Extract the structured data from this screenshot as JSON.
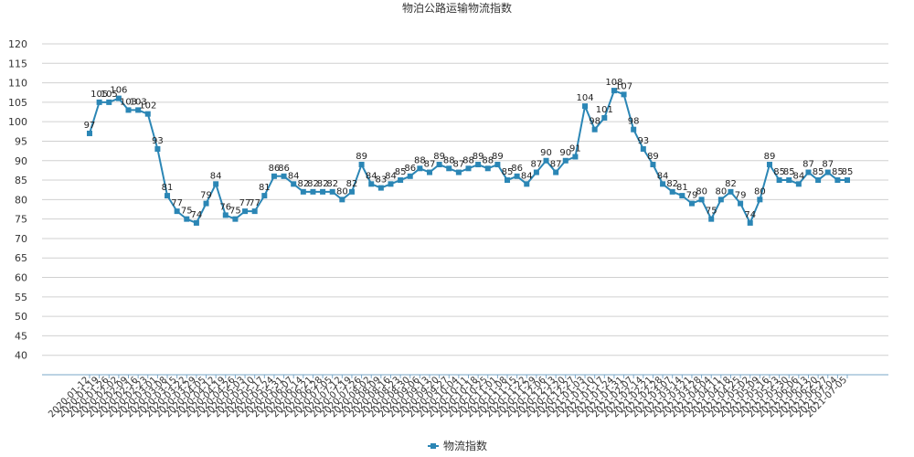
{
  "chart_data": {
    "type": "line",
    "title": "物泊公路运输物流指数",
    "xlabel": "",
    "ylabel": "",
    "ylim": [
      35,
      120
    ],
    "yticks": [
      40,
      45,
      50,
      55,
      60,
      65,
      70,
      75,
      80,
      85,
      90,
      95,
      100,
      105,
      110,
      115,
      120
    ],
    "grid": true,
    "legend_position": "bottom",
    "colors": {
      "series": "#2b86b5",
      "grid": "#d0d0d0",
      "axis": "#7aa7c7"
    },
    "categories": [
      "2020-01-12",
      "2020-01-19",
      "2020-01-26",
      "2020-02-02",
      "2020-02-09",
      "2020-02-16",
      "2020-02-23",
      "2020-03-01",
      "2020-03-08",
      "2020-03-15",
      "2020-03-22",
      "2020-03-29",
      "2020-04-05",
      "2020-04-12",
      "2020-04-19",
      "2020-04-26",
      "2020-05-03",
      "2020-05-10",
      "2020-05-17",
      "2020-05-24",
      "2020-05-31",
      "2020-06-07",
      "2020-06-14",
      "2020-06-21",
      "2020-06-28",
      "2020-07-05",
      "2020-07-12",
      "2020-07-19",
      "2020-07-26",
      "2020-08-02",
      "2020-08-09",
      "2020-08-16",
      "2020-08-23",
      "2020-08-30",
      "2020-09-06",
      "2020-09-13",
      "2020-09-20",
      "2020-09-27",
      "2020-10-04",
      "2020-10-11",
      "2020-10-18",
      "2020-10-25",
      "2020-11-01",
      "2020-11-08",
      "2020-11-15",
      "2020-11-22",
      "2020-11-29",
      "2020-12-06",
      "2020-12-13",
      "2020-12-20",
      "2020-12-27",
      "2021-01-03",
      "2021-01-10",
      "2021-01-17",
      "2021-01-24",
      "2021-01-31",
      "2021-02-07",
      "2021-02-14",
      "2021-02-21",
      "2021-02-28",
      "2021-03-07",
      "2021-03-14",
      "2021-03-21",
      "2021-03-28",
      "2021-04-04",
      "2021-04-11",
      "2021-04-18",
      "2021-04-25",
      "2021-05-02",
      "2021-05-09",
      "2021-05-16",
      "2021-05-23",
      "2021-05-30",
      "2021-06-06",
      "2021-06-13",
      "2021-06-20",
      "2021-06-27",
      "2021-07-04",
      "2021-07-05"
    ],
    "series": [
      {
        "name": "物流指数",
        "values": [
          97,
          105,
          105,
          106,
          103,
          103,
          102,
          93,
          81,
          77,
          75,
          74,
          79,
          84,
          76,
          75,
          77,
          77,
          81,
          86,
          86,
          84,
          82,
          82,
          82,
          82,
          80,
          82,
          89,
          84,
          83,
          84,
          85,
          86,
          88,
          87,
          89,
          88,
          87,
          88,
          89,
          88,
          89,
          85,
          86,
          84,
          87,
          90,
          87,
          90,
          91,
          104,
          98,
          101,
          108,
          107,
          98,
          93,
          89,
          84,
          82,
          81,
          79,
          80,
          75,
          80,
          82,
          79,
          74,
          80,
          89,
          85,
          85,
          84,
          87,
          85,
          87,
          85,
          85
        ]
      }
    ]
  }
}
